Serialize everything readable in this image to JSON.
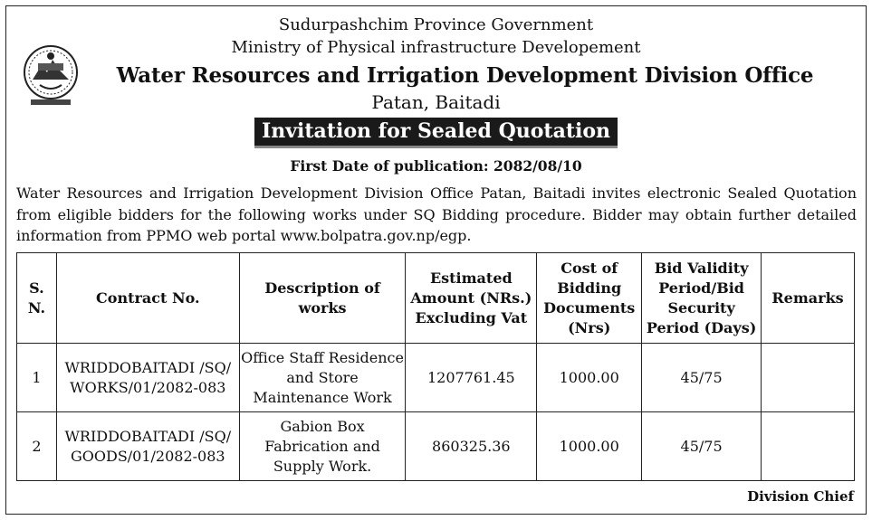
{
  "header": {
    "line1": "Sudurpashchim Province Government",
    "line2": "Ministry of Physical infrastructure Developement",
    "office": "Water Resources and Irrigation Development Division Office",
    "location": "Patan, Baitadi"
  },
  "notice_title": "Invitation for Sealed Quotation",
  "publication_date": "First Date of publication: 2082/08/10",
  "body_text": "Water Resources and Irrigation Development Division Office Patan, Baitadi invites electronic Sealed Quotation from eligible bidders for the following works under SQ Bidding procedure. Bidder may obtain further detailed information from PPMO web portal www.bolpatra.gov.np/egp.",
  "table": {
    "headers": {
      "sn_line1": "S.",
      "sn_line2": "N.",
      "contract_no": "Contract No.",
      "desc_line1": "Description of",
      "desc_line2": "works",
      "amount_line1": "Estimated",
      "amount_line2": "Amount (NRs.)",
      "amount_line3": "Excluding Vat",
      "cost_line1": "Cost of",
      "cost_line2": "Bidding",
      "cost_line3": "Documents",
      "cost_line4": "(Nrs)",
      "validity_line1": "Bid Validity",
      "validity_line2": "Period/Bid",
      "validity_line3": "Security",
      "validity_line4": "Period (Days)",
      "remarks": "Remarks"
    },
    "rows": [
      {
        "sn": "1",
        "contract_line1": "WRIDDOBAITADI /SQ/",
        "contract_line2": "WORKS/01/2082-083",
        "desc_line1": "Office Staff Residence",
        "desc_line2": "and Store",
        "desc_line3": "Maintenance Work",
        "amount": "1207761.45",
        "cost": "1000.00",
        "validity": "45/75",
        "remarks": ""
      },
      {
        "sn": "2",
        "contract_line1": "WRIDDOBAITADI /SQ/",
        "contract_line2": "GOODS/01/2082-083",
        "desc_line1": "Gabion Box",
        "desc_line2": "Fabrication and",
        "desc_line3": "Supply Work.",
        "amount": "860325.36",
        "cost": "1000.00",
        "validity": "45/75",
        "remarks": ""
      }
    ]
  },
  "signature": "Division Chief"
}
